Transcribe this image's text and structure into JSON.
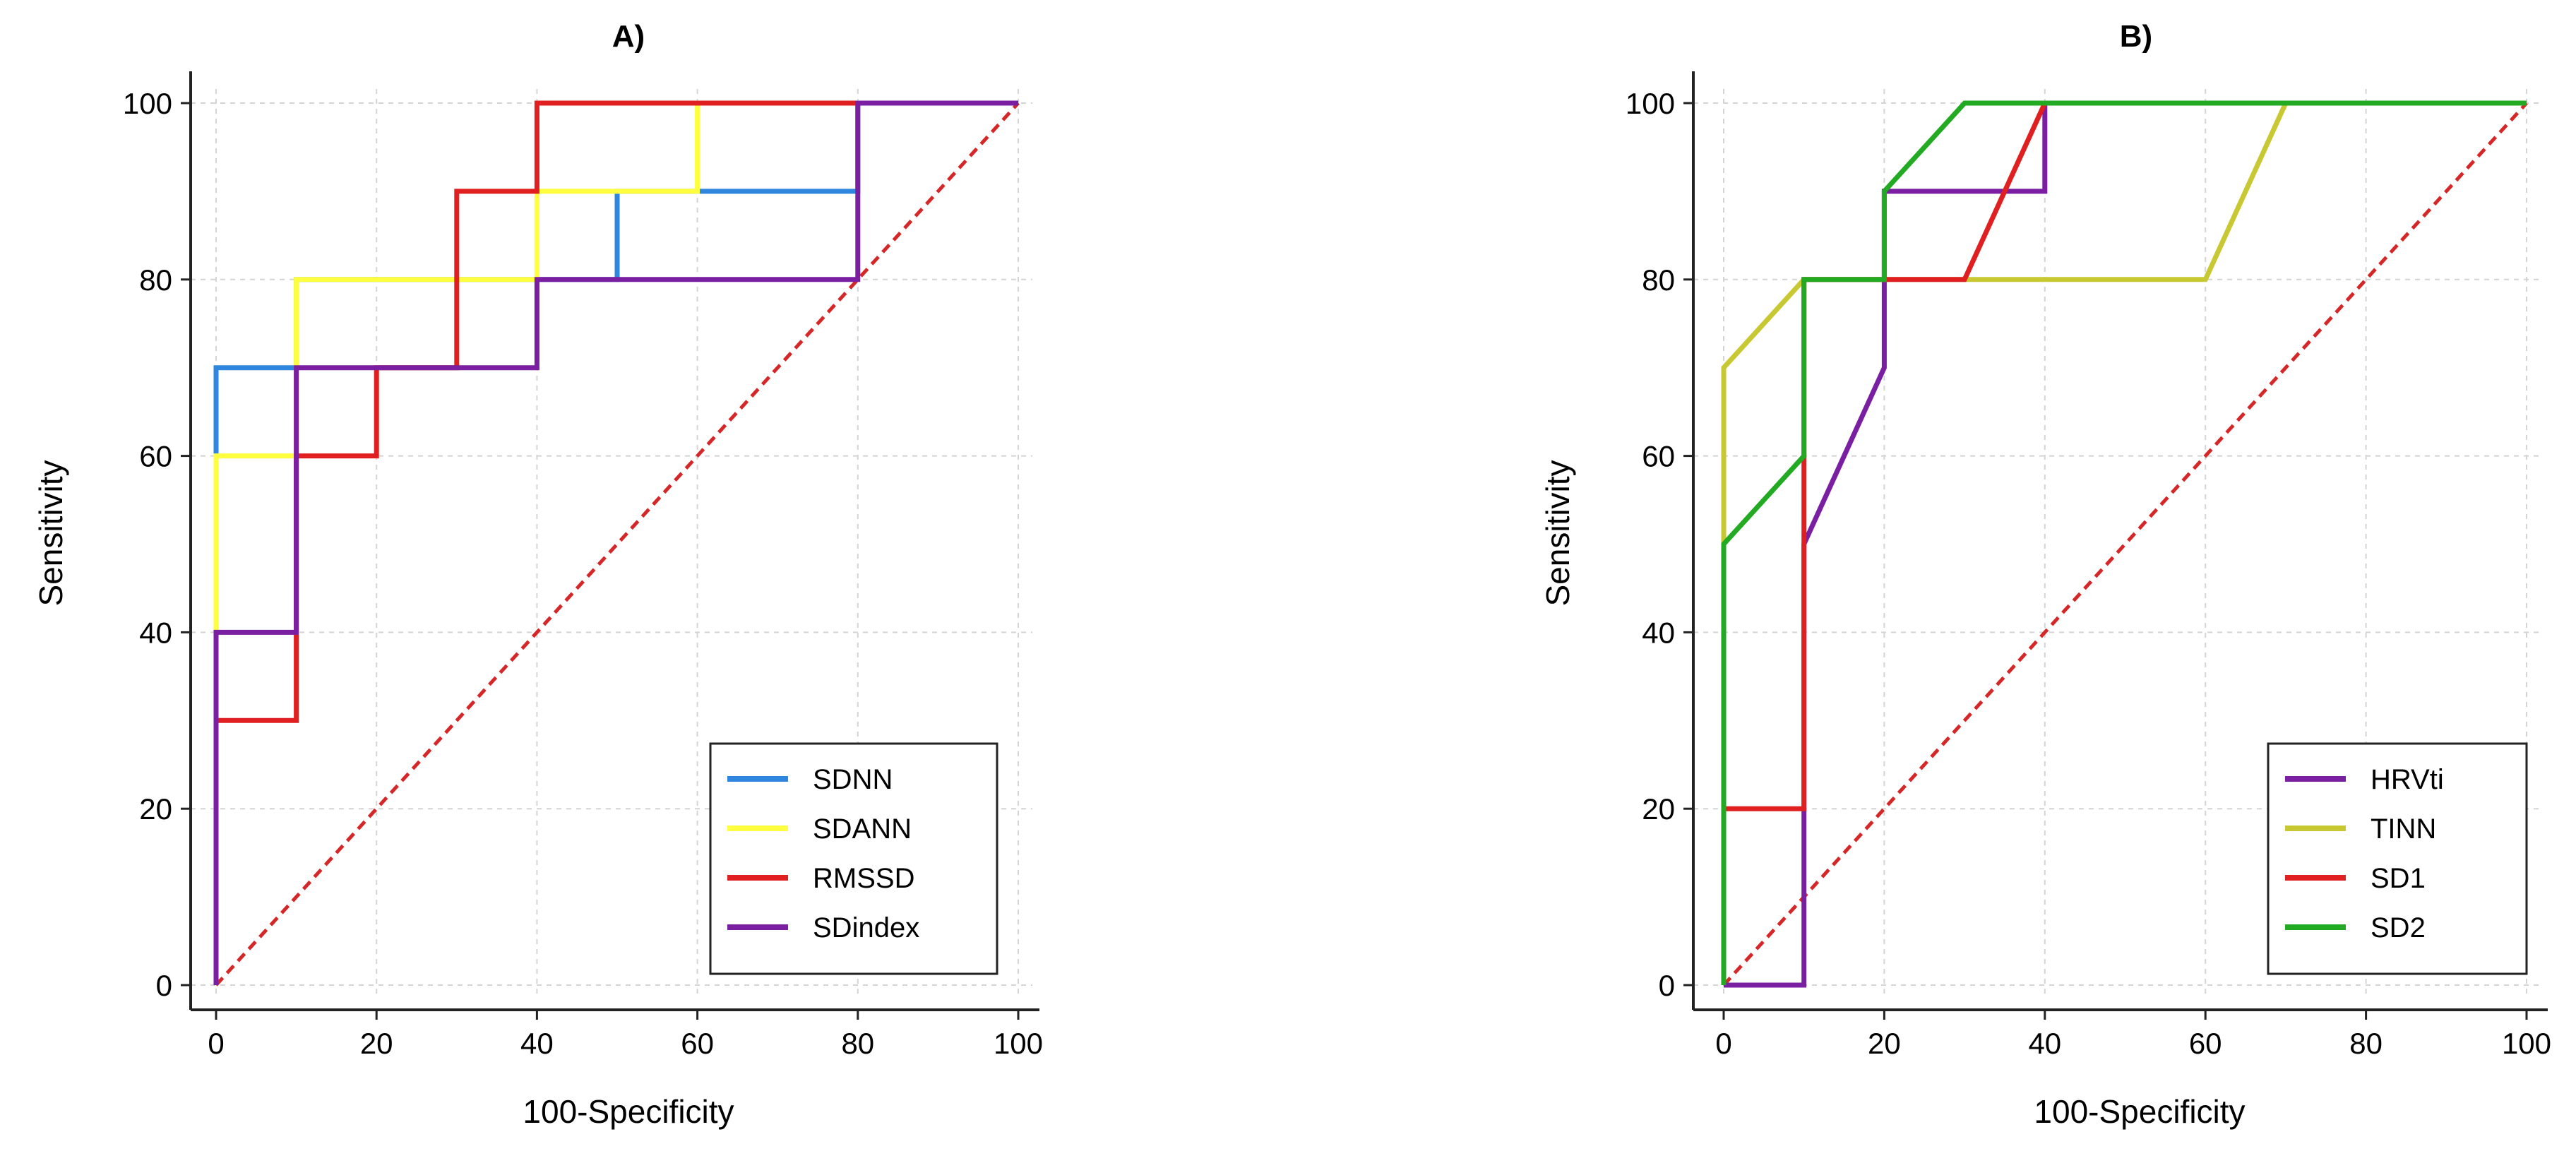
{
  "chart_data": [
    {
      "type": "line",
      "title": "A)",
      "xlabel": "100-Specificity",
      "ylabel": "Sensitivity",
      "xlim": [
        0,
        100
      ],
      "ylim": [
        0,
        100
      ],
      "xticks": [
        "0",
        "20",
        "40",
        "60",
        "80",
        "100"
      ],
      "yticks": [
        "0",
        "20",
        "40",
        "60",
        "80",
        "100"
      ],
      "grid": true,
      "legend_position": "bottom-right",
      "reference_line": {
        "x": [
          0,
          100
        ],
        "y": [
          0,
          100
        ],
        "color": "#d62728",
        "style": "dashed"
      },
      "series": [
        {
          "name": "SDNN",
          "color": "#2e86de",
          "x": [
            0,
            0,
            10,
            10,
            30,
            30,
            40,
            40,
            50,
            50,
            80,
            80,
            100
          ],
          "y": [
            0,
            70,
            70,
            80,
            80,
            80,
            80,
            80,
            80,
            90,
            90,
            100,
            100
          ]
        },
        {
          "name": "SDANN",
          "color": "#ffff40",
          "x": [
            0,
            0,
            10,
            10,
            40,
            40,
            60,
            60,
            100
          ],
          "y": [
            0,
            60,
            60,
            80,
            80,
            90,
            90,
            100,
            100
          ]
        },
        {
          "name": "RMSSD",
          "color": "#e02020",
          "x": [
            0,
            0,
            10,
            10,
            20,
            20,
            30,
            30,
            40,
            40,
            100
          ],
          "y": [
            0,
            30,
            30,
            60,
            60,
            70,
            70,
            90,
            90,
            100,
            100
          ]
        },
        {
          "name": "SDindex",
          "color": "#7b1fa2",
          "x": [
            0,
            0,
            10,
            10,
            40,
            40,
            80,
            80,
            100
          ],
          "y": [
            0,
            40,
            40,
            70,
            70,
            80,
            80,
            100,
            100
          ]
        }
      ]
    },
    {
      "type": "line",
      "title": "B)",
      "xlabel": "100-Specificity",
      "ylabel": "Sensitivity",
      "xlim": [
        0,
        100
      ],
      "ylim": [
        0,
        100
      ],
      "xticks": [
        "0",
        "20",
        "40",
        "60",
        "80",
        "100"
      ],
      "yticks": [
        "0",
        "20",
        "40",
        "60",
        "80",
        "100"
      ],
      "grid": true,
      "legend_position": "bottom-right",
      "reference_line": {
        "x": [
          0,
          100
        ],
        "y": [
          0,
          100
        ],
        "color": "#d62728",
        "style": "dashed"
      },
      "series": [
        {
          "name": "HRVti",
          "color": "#7b1fa2",
          "x": [
            0,
            10,
            10,
            20,
            20,
            40,
            40,
            100
          ],
          "y": [
            0,
            0,
            50,
            70,
            90,
            90,
            100,
            100
          ]
        },
        {
          "name": "TINN",
          "color": "#c8c832",
          "x": [
            0,
            0,
            10,
            60,
            70,
            100
          ],
          "y": [
            50,
            70,
            80,
            80,
            100,
            100
          ]
        },
        {
          "name": "SD1",
          "color": "#e02020",
          "x": [
            0,
            0,
            10,
            10,
            20,
            30,
            40,
            100
          ],
          "y": [
            0,
            20,
            20,
            80,
            80,
            80,
            100,
            100
          ]
        },
        {
          "name": "SD2",
          "color": "#22aa22",
          "x": [
            0,
            0,
            10,
            10,
            20,
            20,
            30,
            100
          ],
          "y": [
            0,
            50,
            60,
            80,
            80,
            90,
            100,
            100
          ]
        }
      ]
    }
  ]
}
